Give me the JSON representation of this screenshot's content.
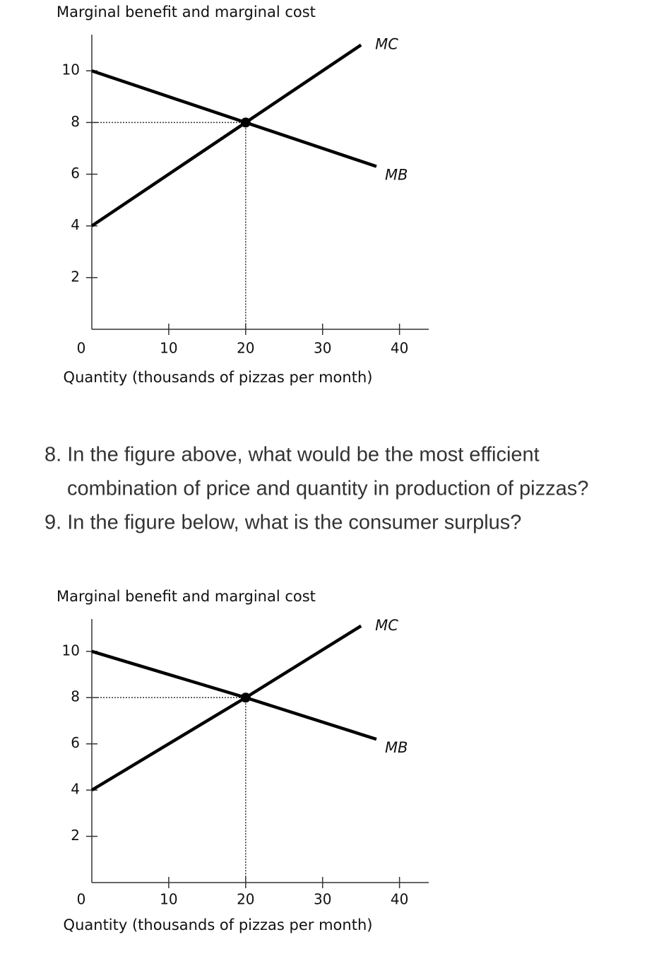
{
  "chart_data": [
    {
      "type": "line",
      "title": "Marginal benefit and marginal cost",
      "xlabel": "Quantity (thousands of pizzas per month)",
      "xlim": [
        0,
        43.8
      ],
      "ylim": [
        0,
        11.4
      ],
      "xticks": [
        0,
        10,
        20,
        30,
        40
      ],
      "yticks": [
        2,
        4,
        6,
        8,
        10
      ],
      "series": [
        {
          "name": "MC",
          "color": "#000000",
          "x": [
            0,
            20,
            35
          ],
          "values": [
            4,
            8,
            11
          ]
        },
        {
          "name": "MB",
          "color": "#000000",
          "x": [
            0,
            20,
            37
          ],
          "values": [
            10,
            8,
            6.3
          ]
        }
      ],
      "equilibrium": {
        "x": 20,
        "y": 8
      }
    },
    {
      "type": "line",
      "title": "Marginal benefit and marginal cost",
      "xlabel": "Quantity (thousands of pizzas per month)",
      "xlim": [
        0,
        43.8
      ],
      "ylim": [
        0,
        11.4
      ],
      "xticks": [
        0,
        10,
        20,
        30,
        40
      ],
      "yticks": [
        2,
        4,
        6,
        8,
        10
      ],
      "series": [
        {
          "name": "MC",
          "color": "#000000",
          "x": [
            0,
            20,
            35
          ],
          "values": [
            4,
            8,
            11.1
          ]
        },
        {
          "name": "MB",
          "color": "#000000",
          "x": [
            0,
            20,
            37
          ],
          "values": [
            10,
            8,
            6.2
          ]
        }
      ],
      "equilibrium": {
        "x": 20,
        "y": 8
      }
    }
  ],
  "questions": [
    {
      "lines": [
        "8. In the figure above, what would be the most efficient",
        "combination of price and quantity in production of pizzas?"
      ]
    },
    {
      "lines": [
        "9. In the figure below, what is the consumer surplus?"
      ]
    }
  ]
}
